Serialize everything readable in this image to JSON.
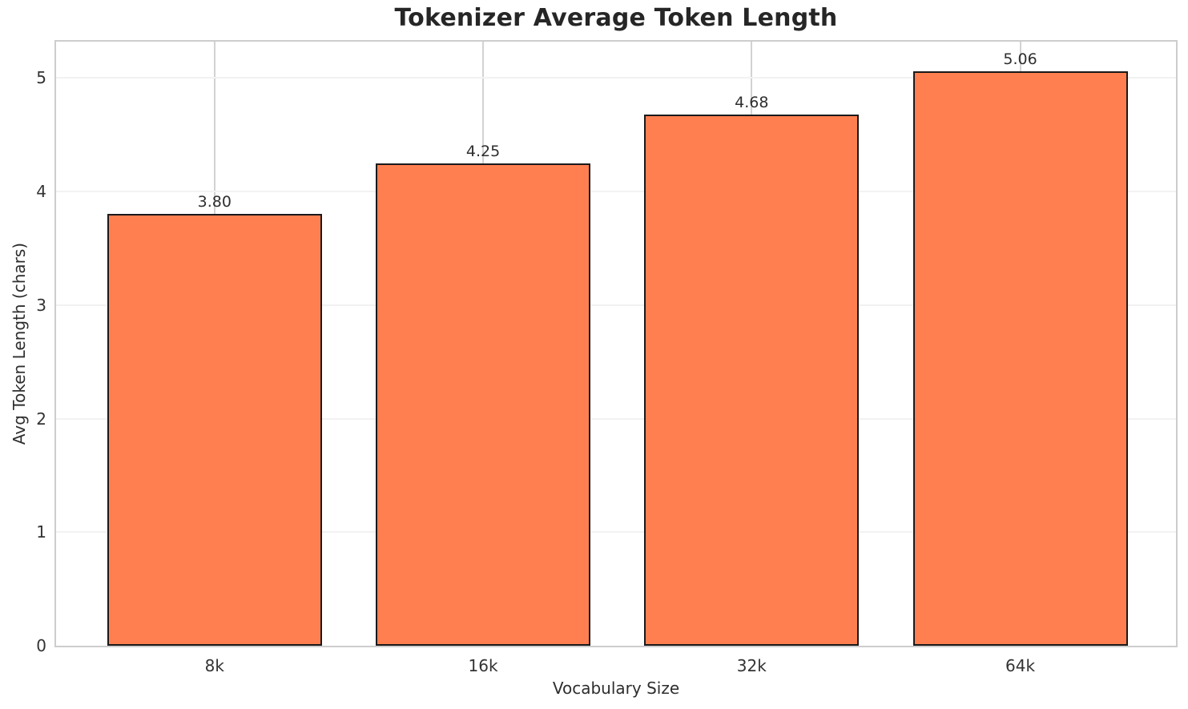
{
  "chart_data": {
    "type": "bar",
    "title": "Tokenizer Average Token Length",
    "xlabel": "Vocabulary Size",
    "ylabel": "Avg Token Length (chars)",
    "categories": [
      "8k",
      "16k",
      "32k",
      "64k"
    ],
    "values": [
      3.8,
      4.25,
      4.68,
      5.06
    ],
    "bar_labels": [
      "3.80",
      "4.25",
      "4.68",
      "5.06"
    ],
    "yticks": [
      "0",
      "1",
      "2",
      "3",
      "4",
      "5"
    ],
    "ytick_values": [
      0,
      1,
      2,
      3,
      4,
      5
    ],
    "ylim": [
      0,
      5.32
    ],
    "grid": true,
    "legend": null,
    "colors": {
      "bar_fill": "#FF7F50",
      "bar_edge": "#1a1a1a",
      "spine": "#cdcdcd",
      "grid_horizontal": "#f2f2f2",
      "grid_vertical": "#d2d2d2",
      "tick_text": "#333333",
      "label_text": "#2e2e2e",
      "title_text": "#262626",
      "background": "#ffffff"
    }
  }
}
